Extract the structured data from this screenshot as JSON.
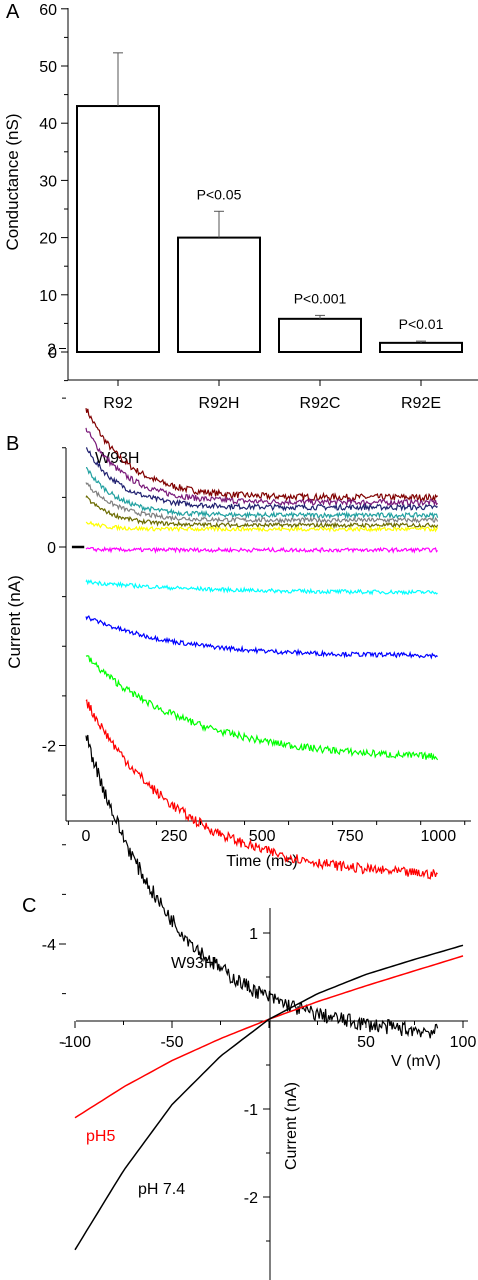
{
  "chart_data": [
    {
      "type": "bar",
      "panel_label": "A",
      "ylabel": "Conductance (nS)",
      "ylim": [
        -5,
        60
      ],
      "yticks": [
        0,
        10,
        20,
        30,
        40,
        50,
        60
      ],
      "categories": [
        "R92",
        "R92H",
        "R92C",
        "R92E"
      ],
      "values": [
        43,
        20,
        5.8,
        1.6
      ],
      "errors": [
        9.3,
        4.6,
        0.6,
        0.3
      ],
      "annotations": [
        "",
        "P<0.05",
        "P<0.001",
        "P<0.01"
      ]
    },
    {
      "type": "line",
      "panel_label": "B",
      "title": "W93H",
      "xlabel": "Time (ms)",
      "ylabel": "Current (nA)",
      "xlim": [
        -50,
        1100
      ],
      "ylim": [
        -5.4,
        2
      ],
      "xticks": [
        0,
        250,
        500,
        750,
        1000
      ],
      "yticks": [
        -4,
        -2,
        0,
        2
      ],
      "series": [
        {
          "color": "#800000",
          "start": 1.4,
          "end": 0.5,
          "tau": 120
        },
        {
          "color": "#7a1a7a",
          "start": 1.2,
          "end": 0.45,
          "tau": 110
        },
        {
          "color": "#202070",
          "start": 1.0,
          "end": 0.4,
          "tau": 100
        },
        {
          "color": "#20a0a0",
          "start": 0.8,
          "end": 0.32,
          "tau": 90
        },
        {
          "color": "#808080",
          "start": 0.65,
          "end": 0.27,
          "tau": 90
        },
        {
          "color": "#6b6b00",
          "start": 0.5,
          "end": 0.22,
          "tau": 80
        },
        {
          "color": "#ffff00",
          "start": 0.25,
          "end": 0.18,
          "tau": 60
        },
        {
          "color": "#ff00ff",
          "start": -0.02,
          "end": -0.03,
          "tau": 50
        },
        {
          "color": "#00ffff",
          "start": -0.35,
          "end": -0.46,
          "tau": 300
        },
        {
          "color": "#0000ff",
          "start": -0.7,
          "end": -1.1,
          "tau": 250
        },
        {
          "color": "#00ff00",
          "start": -1.1,
          "end": -2.15,
          "tau": 300
        },
        {
          "color": "#ff0000",
          "start": -1.55,
          "end": -3.35,
          "tau": 280
        },
        {
          "color": "#000000",
          "start": -1.9,
          "end": -4.95,
          "tau": 260
        }
      ]
    },
    {
      "type": "line",
      "panel_label": "C",
      "title": "W93H",
      "xlabel": "V (mV)",
      "ylabel": "Current (nA)",
      "xlim": [
        -100,
        100
      ],
      "ylim": [
        -2.5,
        1
      ],
      "xticks": [
        -100,
        -50,
        0,
        50,
        100
      ],
      "yticks": [
        1,
        -1,
        -2
      ],
      "series": [
        {
          "name": "pH5",
          "color": "#ff0000",
          "x": [
            -100,
            -75,
            -50,
            -25,
            0,
            25,
            50,
            75,
            100
          ],
          "y": [
            -1.1,
            -0.75,
            -0.45,
            -0.2,
            0.02,
            0.22,
            0.4,
            0.57,
            0.74
          ]
        },
        {
          "name": "pH 7.4",
          "color": "#000000",
          "x": [
            -100,
            -75,
            -50,
            -25,
            0,
            25,
            50,
            75,
            100
          ],
          "y": [
            -2.6,
            -1.7,
            -0.95,
            -0.4,
            0.02,
            0.31,
            0.53,
            0.7,
            0.86
          ]
        }
      ]
    }
  ]
}
